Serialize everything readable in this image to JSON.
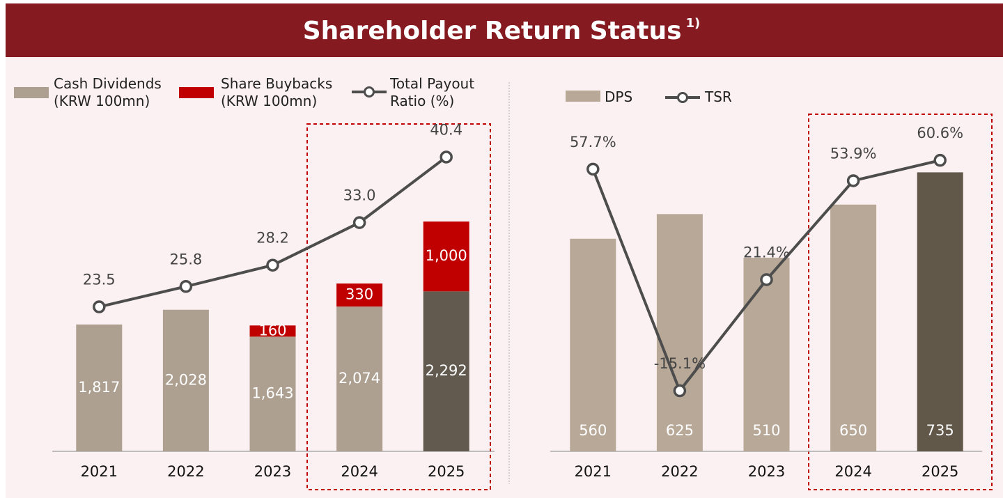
{
  "title": "Shareholder Return Status",
  "title_note": "1)",
  "chart_data": [
    {
      "type": "bar",
      "stacked": true,
      "categories": [
        "2021",
        "2022",
        "2023",
        "2024",
        "2025"
      ],
      "ylim": [
        0,
        4470
      ],
      "y2lim": [
        7.2,
        42.4
      ],
      "series": [
        {
          "name": "Cash Dividends (KRW 100mn)",
          "type": "bar",
          "color": "#ada090",
          "colors": [
            "#ada090",
            "#ada090",
            "#ada090",
            "#ada090",
            "#625a4e"
          ],
          "values": [
            1817,
            2028,
            1643,
            2074,
            2292
          ],
          "value_labels": [
            "1,817",
            "2,028",
            "1,643",
            "2,074",
            "2,292"
          ]
        },
        {
          "name": "Share Buybacks (KRW 100mn)",
          "type": "bar",
          "color": "#c00000",
          "values": [
            null,
            null,
            160,
            330,
            1000
          ],
          "value_labels": [
            null,
            null,
            "160",
            "330",
            "1,000"
          ]
        },
        {
          "name": "Total Payout Ratio (%)",
          "type": "line",
          "axis": "y2",
          "color": "#4d4d4d",
          "values": [
            23.5,
            25.8,
            28.2,
            33.0,
            40.4
          ],
          "value_labels": [
            "23.5",
            "25.8",
            "28.2",
            "33.0",
            "40.4"
          ]
        }
      ]
    },
    {
      "type": "bar",
      "categories": [
        "2021",
        "2022",
        "2023",
        "2024",
        "2025"
      ],
      "ylim": [
        0,
        822
      ],
      "y2lim": [
        -35,
        67.5
      ],
      "series": [
        {
          "name": "DPS",
          "type": "bar",
          "color": "#b8a898",
          "colors": [
            "#b8a898",
            "#b8a898",
            "#b8a898",
            "#b8a898",
            "#615849"
          ],
          "values": [
            560,
            625,
            510,
            650,
            735
          ]
        },
        {
          "name": "TSR",
          "type": "line",
          "axis": "y2",
          "color": "#4d4d4d",
          "values": [
            57.7,
            -15.1,
            21.4,
            53.9,
            60.6
          ],
          "value_labels": [
            "57.7%",
            "-15.1%",
            "21.4%",
            "53.9%",
            "60.6%"
          ]
        }
      ]
    }
  ]
}
